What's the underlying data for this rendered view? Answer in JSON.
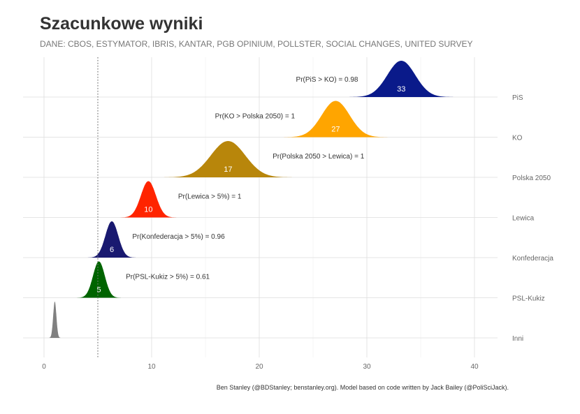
{
  "title": "Szacunkowe wyniki",
  "subtitle": "DANE: CBOS, ESTYMATOR, IBRIS, KANTAR, PGB OPINIUM, POLLSTER, SOCIAL CHANGES, UNITED SURVEY",
  "caption": "Ben Stanley (@BDStanley; benstanley.org). Model based on code written by Jack Bailey (@PoliSciJack).",
  "chart_data": {
    "type": "ridgeline",
    "xlim": [
      -2,
      42
    ],
    "xticks": [
      0,
      10,
      20,
      30,
      40
    ],
    "threshold_line": 5,
    "series": [
      {
        "name": "PiS",
        "mean": 33.2,
        "sd": 1.3,
        "label": "33",
        "color": "#0a1a8a",
        "annotation": "Pr(PiS > KO)  =  0.98",
        "annotation_x": 26.3
      },
      {
        "name": "KO",
        "mean": 27.1,
        "sd": 1.3,
        "label": "27",
        "color": "#ffa500",
        "annotation": "Pr(KO > Polska 2050)  =  1",
        "annotation_x": 19.6
      },
      {
        "name": "Polska 2050",
        "mean": 17.1,
        "sd": 1.6,
        "label": "17",
        "color": "#b8860b",
        "annotation": "Pr(Polska 2050 > Lewica)  =  1",
        "annotation_x": 25.5
      },
      {
        "name": "Lewica",
        "mean": 9.7,
        "sd": 0.7,
        "label": "10",
        "color": "#ff2400",
        "annotation": "Pr(Lewica > 5%)  =  1",
        "annotation_x": 15.4
      },
      {
        "name": "Konfederacja",
        "mean": 6.3,
        "sd": 0.6,
        "label": "6",
        "color": "#191970",
        "annotation": "Pr(Konfederacja > 5%)  =  0.96",
        "annotation_x": 12.5
      },
      {
        "name": "PSL-Kukiz",
        "mean": 5.1,
        "sd": 0.55,
        "label": "5",
        "color": "#006400",
        "annotation": "Pr(PSL-Kukiz > 5%)  =  0.61",
        "annotation_x": 11.5
      },
      {
        "name": "Inni",
        "mean": 1.0,
        "sd": 0.15,
        "label": "",
        "color": "#808080",
        "annotation": "",
        "annotation_x": null
      }
    ]
  }
}
